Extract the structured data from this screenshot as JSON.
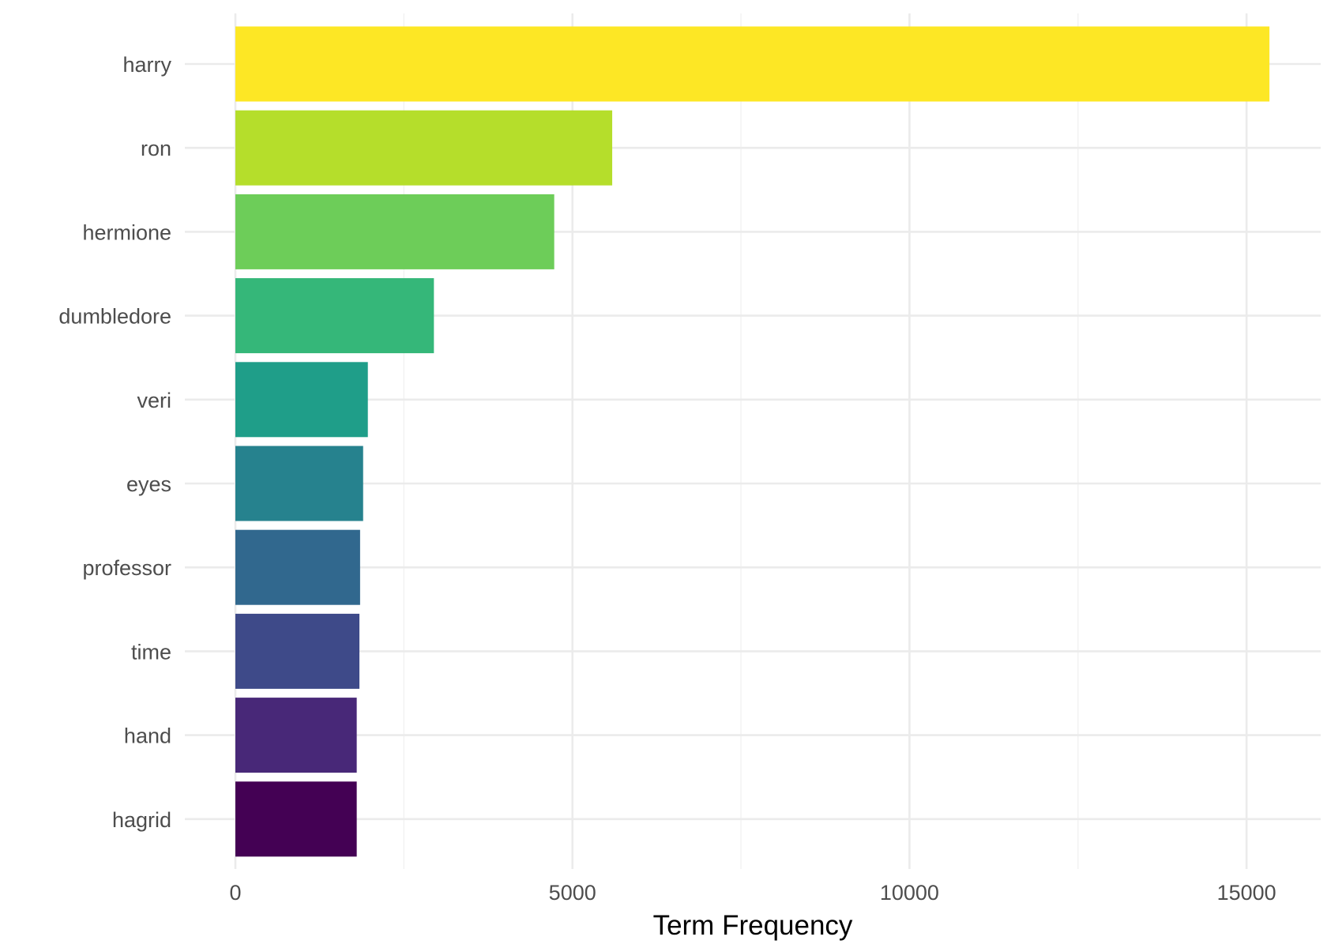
{
  "chart_data": {
    "type": "bar",
    "orientation": "horizontal",
    "title": "",
    "xlabel": "Term Frequency",
    "ylabel": "",
    "categories": [
      "harry",
      "ron",
      "hermione",
      "dumbledore",
      "veri",
      "eyes",
      "professor",
      "time",
      "hand",
      "hagrid"
    ],
    "values": [
      15340,
      5590,
      4730,
      2945,
      1965,
      1895,
      1850,
      1840,
      1800,
      1800
    ],
    "colors": [
      "#FDE725",
      "#B5DE2B",
      "#6DCD59",
      "#35B779",
      "#1F9E89",
      "#26828E",
      "#31688E",
      "#3E4A89",
      "#482878",
      "#440154"
    ],
    "xlim": [
      -750,
      16100
    ],
    "xticks": [
      0,
      5000,
      10000,
      15000
    ],
    "xtick_labels": [
      "0",
      "5000",
      "10000",
      "15000"
    ],
    "grid": true,
    "legend": "none",
    "style": "minimal"
  }
}
